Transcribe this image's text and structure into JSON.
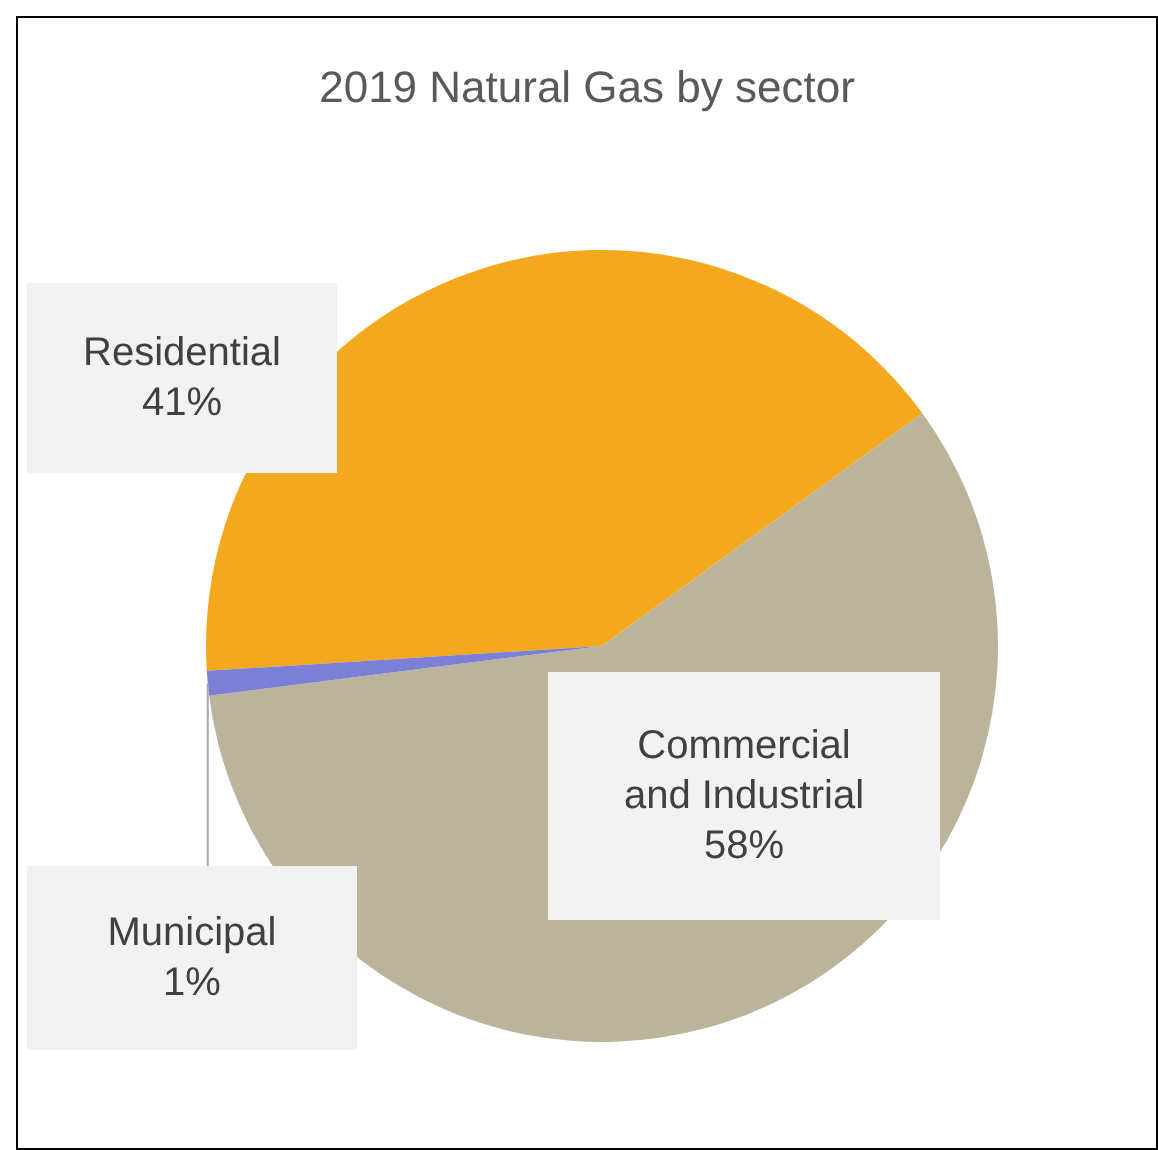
{
  "chart_data": {
    "type": "pie",
    "title": "2019 Natural Gas by sector",
    "categories": [
      "Residential",
      "Commercial and Industrial",
      "Municipal"
    ],
    "values": [
      41,
      58,
      1
    ],
    "value_labels": [
      "41%",
      "58%",
      "1%"
    ],
    "colors": [
      "#f4a81d",
      "#bcb39b",
      "#7b7fd6"
    ],
    "legend": false
  }
}
